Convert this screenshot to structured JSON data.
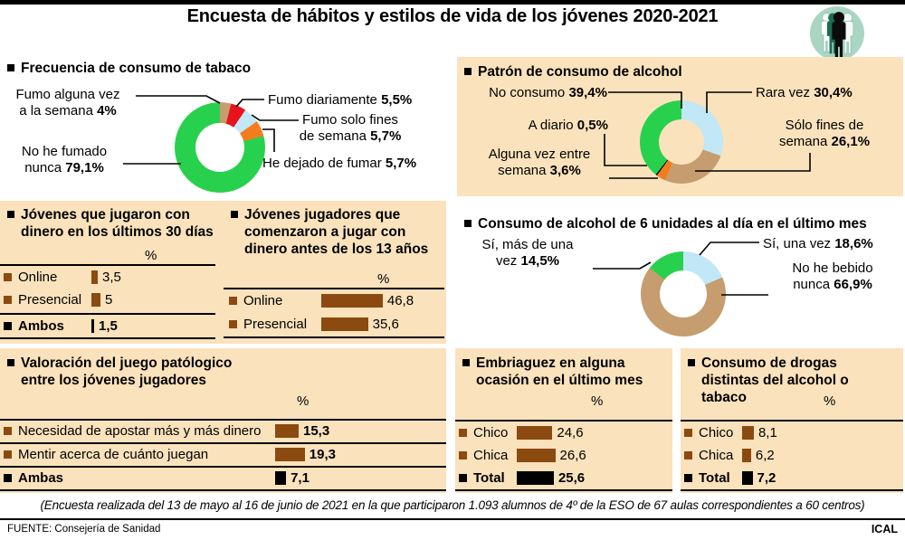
{
  "title": "Encuesta de hábitos y estilos de vida de los jóvenes 2020-2021",
  "colors": {
    "panel_bg": "#FAE2BC",
    "brown": "#8B4A10",
    "green": "#28D14D",
    "tan": "#C69D6E",
    "red": "#E8131D",
    "light_blue": "#C2E7F7",
    "orange": "#F37D1E",
    "black": "#000000",
    "icon_bg": "#A9D6C3",
    "icon_green": "#1C6B52"
  },
  "chart_data": [
    {
      "id": "tabaco",
      "type": "donut",
      "title": "Frecuencia de consumo de tabaco",
      "segments": [
        {
          "label": "Fumo alguna vez\na la semana",
          "value": 4,
          "display": "4%",
          "color": "#C69D6E"
        },
        {
          "label": "Fumo diariamente",
          "value": 5.5,
          "display": "5,5%",
          "color": "#E8131D"
        },
        {
          "label": "Fumo solo fines\nde semana",
          "value": 5.7,
          "display": "5,7%",
          "color": "#C2E7F7"
        },
        {
          "label": "He dejado de fumar",
          "value": 5.7,
          "display": "5,7%",
          "color": "#F37D1E"
        },
        {
          "label": "No he fumado\nnunca",
          "value": 79.1,
          "display": "79,1%",
          "color": "#28D14D"
        }
      ]
    },
    {
      "id": "patron-alcohol",
      "type": "donut",
      "title": "Patrón de consumo de alcohol",
      "segments": [
        {
          "label": "Rara vez",
          "value": 30.4,
          "display": "30,4%",
          "color": "#C2E7F7"
        },
        {
          "label": "Sólo fines de\nsemana",
          "value": 26.1,
          "display": "26,1%",
          "color": "#C69D6E"
        },
        {
          "label": "Alguna vez entre\nsemana",
          "value": 3.6,
          "display": "3,6%",
          "color": "#F37D1E"
        },
        {
          "label": "A diario",
          "value": 0.5,
          "display": "0,5%",
          "color": "#000000"
        },
        {
          "label": "No consumo",
          "value": 39.4,
          "display": "39,4%",
          "color": "#28D14D"
        }
      ]
    },
    {
      "id": "juego-30-dias",
      "type": "bar",
      "title": "Jóvenes que jugaron con dinero en los últimos 30 días",
      "unit": "%",
      "rows": [
        {
          "label": "Online",
          "value": 3.5,
          "display": "3,5",
          "color": "#8B4A10",
          "bold": false
        },
        {
          "label": "Presencial",
          "value": 5,
          "display": "5",
          "color": "#8B4A10",
          "bold": false
        },
        {
          "label": "Ambos",
          "value": 1.5,
          "display": "1,5",
          "color": "#000000",
          "bold": true
        }
      ]
    },
    {
      "id": "juego-antes-13",
      "type": "bar",
      "title": "Jóvenes jugadores que comenzaron a jugar con dinero antes de los 13 años",
      "unit": "%",
      "rows": [
        {
          "label": "Online",
          "value": 46.8,
          "display": "46,8",
          "color": "#8B4A10",
          "bold": false
        },
        {
          "label": "Presencial",
          "value": 35.6,
          "display": "35,6",
          "color": "#8B4A10",
          "bold": false
        }
      ]
    },
    {
      "id": "seis-unidades",
      "type": "donut",
      "title": "Consumo de alcohol de 6 unidades al día en el último mes",
      "segments": [
        {
          "label": "Sí, una vez",
          "value": 18.6,
          "display": "18,6%",
          "color": "#C2E7F7"
        },
        {
          "label": "No he bebido\nnunca",
          "value": 66.9,
          "display": "66,9%",
          "color": "#C69D6E"
        },
        {
          "label": "Sí, más de una\nvez",
          "value": 14.5,
          "display": "14,5%",
          "color": "#28D14D"
        }
      ]
    },
    {
      "id": "juego-patologico",
      "type": "bar",
      "title": "Valoración del juego patólogico entre los jóvenes jugadores",
      "unit": "%",
      "rows": [
        {
          "label": "Necesidad de apostar más y más dinero",
          "value": 15.3,
          "display": "15,3",
          "color": "#8B4A10",
          "bold": false
        },
        {
          "label": "Mentir acerca de cuánto juegan",
          "value": 19.3,
          "display": "19,3",
          "color": "#8B4A10",
          "bold": false
        },
        {
          "label": "Ambas",
          "value": 7.1,
          "display": "7,1",
          "color": "#000000",
          "bold": true
        }
      ]
    },
    {
      "id": "embriaguez",
      "type": "bar",
      "title": "Embriaguez en alguna ocasión en el último mes",
      "unit": "%",
      "rows": [
        {
          "label": "Chico",
          "value": 24.6,
          "display": "24,6",
          "color": "#8B4A10",
          "bold": false
        },
        {
          "label": "Chica",
          "value": 26.6,
          "display": "26,6",
          "color": "#8B4A10",
          "bold": false
        },
        {
          "label": "Total",
          "value": 25.6,
          "display": "25,6",
          "color": "#000000",
          "bold": true
        }
      ]
    },
    {
      "id": "drogas",
      "type": "bar",
      "title": "Consumo de drogas distintas del alcohol o tabaco",
      "unit": "%",
      "rows": [
        {
          "label": "Chico",
          "value": 8.1,
          "display": "8,1",
          "color": "#8B4A10",
          "bold": false
        },
        {
          "label": "Chica",
          "value": 6.2,
          "display": "6,2",
          "color": "#8B4A10",
          "bold": false
        },
        {
          "label": "Total",
          "value": 7.2,
          "display": "7,2",
          "color": "#000000",
          "bold": true
        }
      ]
    }
  ],
  "footer": {
    "note": "(Encuesta realizada del 13 de mayo al 16 de junio de 2021 en la que participaron 1.093 alumnos de 4º de la ESO de 67 aulas correspondientes a 60 centros)",
    "source": "FUENTE: Consejería de Sanidad",
    "credit": "ICAL"
  }
}
